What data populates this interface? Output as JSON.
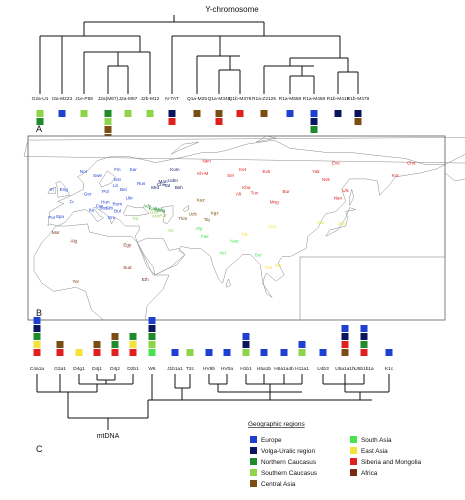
{
  "y_title": "Y-chromosome",
  "mt_title": "mtDNA",
  "panels": {
    "a": "A",
    "b": "B",
    "c": "C"
  },
  "legend_title": "Geographic regions",
  "colors": {
    "europe": "#1f3fd0",
    "volga": "#0a1560",
    "ncau": "#1e8a2a",
    "scau": "#8ed44a",
    "casia": "#7a4e12",
    "sasia": "#49e34f",
    "easia": "#f2e23a",
    "sib": "#e0201e",
    "africa": "#7a2a10"
  },
  "legend_items": [
    {
      "key": "europe",
      "label": "Europe"
    },
    {
      "key": "volga",
      "label": "Volga-Uralic region"
    },
    {
      "key": "ncau",
      "label": "Northern Caucasus"
    },
    {
      "key": "scau",
      "label": "Southern Caucasus"
    },
    {
      "key": "casia",
      "label": "Central Asia"
    },
    {
      "key": "sasia",
      "label": "South Asia"
    },
    {
      "key": "easia",
      "label": "East Asia"
    },
    {
      "key": "sib",
      "label": "Siberia and Mongolia"
    },
    {
      "key": "africa",
      "label": "Africa"
    }
  ],
  "y_leaves": [
    {
      "label": "G2a-U1",
      "colors": [
        "scau",
        "ncau"
      ]
    },
    {
      "label": "I2a-M223",
      "colors": [
        "europe"
      ]
    },
    {
      "label": "J1e-P58",
      "colors": [
        "scau"
      ]
    },
    {
      "label": "J2a(M67)",
      "colors": [
        "ncau",
        "scau",
        "casia",
        "casia"
      ]
    },
    {
      "label": "J2a-M67",
      "colors": [
        "scau"
      ]
    },
    {
      "label": "J2b-M12",
      "colors": [
        "scau"
      ]
    },
    {
      "label": "N-TAT",
      "colors": [
        "volga",
        "sib"
      ]
    },
    {
      "label": "Q1a-M25",
      "colors": [
        "casia"
      ]
    },
    {
      "label": "Q1a-M346",
      "colors": [
        "casia",
        "sib"
      ]
    },
    {
      "label": "Q1b-M378",
      "colors": [
        "sib"
      ]
    },
    {
      "label": "R1a-Z2125",
      "colors": [
        "casia"
      ]
    },
    {
      "label": "R1a-M558",
      "colors": [
        "europe"
      ]
    },
    {
      "label": "R1a-M458",
      "colors": [
        "europe",
        "volga",
        "ncau"
      ]
    },
    {
      "label": "R1b-M412",
      "colors": [
        "volga"
      ]
    },
    {
      "label": "R1b-M478",
      "colors": [
        "volga",
        "casia"
      ]
    }
  ],
  "mt_leaves": [
    {
      "label": "C4a1a",
      "colors": [
        "sib",
        "easia",
        "ncau",
        "volga",
        "europe"
      ]
    },
    {
      "label": "G2a1",
      "colors": [
        "sib",
        "casia"
      ]
    },
    {
      "label": "D4g1",
      "colors": [
        "easia"
      ]
    },
    {
      "label": "D4j1",
      "colors": [
        "sib",
        "casia"
      ]
    },
    {
      "label": "D4j2",
      "colors": [
        "sib",
        "ncau",
        "casia"
      ]
    },
    {
      "label": "D2b1",
      "colors": [
        "sib",
        "easia",
        "ncau"
      ]
    },
    {
      "label": "W6",
      "colors": [
        "sasia",
        "scau",
        "ncau",
        "volga",
        "europe"
      ]
    },
    {
      "label": "J1b1a1",
      "colors": [
        "europe"
      ]
    },
    {
      "label": "T2c",
      "colors": [
        "scau"
      ]
    },
    {
      "label": "HV9b",
      "colors": [
        "europe"
      ]
    },
    {
      "label": "HV0a",
      "colors": [
        "europe"
      ]
    },
    {
      "label": "H1b1",
      "colors": [
        "scau",
        "volga",
        "europe"
      ]
    },
    {
      "label": "H5a1b",
      "colors": [
        "europe"
      ]
    },
    {
      "label": "H6a1a4b",
      "colors": [
        "europe"
      ]
    },
    {
      "label": "H11a1",
      "colors": [
        "scau",
        "europe"
      ]
    },
    {
      "label": "U4b3",
      "colors": [
        "europe"
      ]
    },
    {
      "label": "U5a1a1h",
      "colors": [
        "casia",
        "sib",
        "volga",
        "europe"
      ]
    },
    {
      "label": "U5b1b1a",
      "colors": [
        "sib",
        "ncau",
        "volga",
        "europe"
      ]
    },
    {
      "label": "K1c",
      "colors": [
        "europe"
      ]
    }
  ],
  "map_labels": [
    {
      "text": "Nor",
      "region": "europe",
      "lon": 8,
      "lat": 62
    },
    {
      "text": "Swe",
      "region": "europe",
      "lon": 15,
      "lat": 60
    },
    {
      "text": "Fin",
      "region": "europe",
      "lon": 25,
      "lat": 63
    },
    {
      "text": "Kar",
      "region": "europe",
      "lon": 33,
      "lat": 63
    },
    {
      "text": "Eng",
      "region": "europe",
      "lon": -2,
      "lat": 53
    },
    {
      "text": "Irl",
      "region": "europe",
      "lon": -8,
      "lat": 53
    },
    {
      "text": "Fr",
      "region": "europe",
      "lon": 2,
      "lat": 47
    },
    {
      "text": "Ger",
      "region": "europe",
      "lon": 10,
      "lat": 51
    },
    {
      "text": "Pol",
      "region": "europe",
      "lon": 19,
      "lat": 52
    },
    {
      "text": "Est",
      "region": "europe",
      "lon": 25,
      "lat": 58
    },
    {
      "text": "Lit",
      "region": "europe",
      "lon": 24,
      "lat": 55
    },
    {
      "text": "Bel",
      "region": "europe",
      "lon": 28,
      "lat": 53
    },
    {
      "text": "Rus",
      "region": "europe",
      "lon": 37,
      "lat": 56
    },
    {
      "text": "Ukr",
      "region": "europe",
      "lon": 31,
      "lat": 49
    },
    {
      "text": "Hun",
      "region": "europe",
      "lon": 19,
      "lat": 47
    },
    {
      "text": "Cro",
      "region": "europe",
      "lon": 16,
      "lat": 45
    },
    {
      "text": "Bos",
      "region": "europe",
      "lon": 18,
      "lat": 44
    },
    {
      "text": "Srb",
      "region": "europe",
      "lon": 21,
      "lat": 44
    },
    {
      "text": "Rom",
      "region": "europe",
      "lon": 25,
      "lat": 46
    },
    {
      "text": "Bul",
      "region": "europe",
      "lon": 25,
      "lat": 42.5
    },
    {
      "text": "Ita",
      "region": "europe",
      "lon": 12,
      "lat": 43
    },
    {
      "text": "Spa",
      "region": "europe",
      "lon": -4,
      "lat": 40
    },
    {
      "text": "Por",
      "region": "europe",
      "lon": -8,
      "lat": 39.5
    },
    {
      "text": "Gre",
      "region": "europe",
      "lon": 22,
      "lat": 39.5
    },
    {
      "text": "Mari",
      "region": "volga",
      "lon": 48,
      "lat": 57
    },
    {
      "text": "Chv",
      "region": "volga",
      "lon": 47,
      "lat": 55.5
    },
    {
      "text": "Mrd",
      "region": "volga",
      "lon": 44,
      "lat": 54
    },
    {
      "text": "Udm",
      "region": "volga",
      "lon": 53,
      "lat": 57.5
    },
    {
      "text": "Kom",
      "region": "volga",
      "lon": 54,
      "lat": 63
    },
    {
      "text": "Tat",
      "region": "volga",
      "lon": 50,
      "lat": 55
    },
    {
      "text": "Bsh",
      "region": "volga",
      "lon": 56,
      "lat": 54
    },
    {
      "text": "Ady",
      "region": "ncau",
      "lon": 40,
      "lat": 45
    },
    {
      "text": "Kab",
      "region": "ncau",
      "lon": 43,
      "lat": 43.8
    },
    {
      "text": "Che",
      "region": "ncau",
      "lon": 45.7,
      "lat": 43.3
    },
    {
      "text": "Dag",
      "region": "ncau",
      "lon": 47,
      "lat": 42.8
    },
    {
      "text": "Arm",
      "region": "scau",
      "lon": 44.5,
      "lat": 40.2
    },
    {
      "text": "Geo",
      "region": "scau",
      "lon": 43.5,
      "lat": 42
    },
    {
      "text": "Azr",
      "region": "scau",
      "lon": 48,
      "lat": 40.5
    },
    {
      "text": "Tur",
      "region": "scau",
      "lon": 34,
      "lat": 39
    },
    {
      "text": "Irn",
      "region": "scau",
      "lon": 52,
      "lat": 33
    },
    {
      "text": "Kaz",
      "region": "casia",
      "lon": 67,
      "lat": 48
    },
    {
      "text": "Uzb",
      "region": "casia",
      "lon": 63,
      "lat": 41
    },
    {
      "text": "Tkm",
      "region": "casia",
      "lon": 58,
      "lat": 39
    },
    {
      "text": "Kgz",
      "region": "casia",
      "lon": 74,
      "lat": 41.5
    },
    {
      "text": "Taj",
      "region": "casia",
      "lon": 70,
      "lat": 38.5
    },
    {
      "text": "Afg",
      "region": "sasia",
      "lon": 66,
      "lat": 34
    },
    {
      "text": "Pak",
      "region": "sasia",
      "lon": 69,
      "lat": 30
    },
    {
      "text": "Ind",
      "region": "sasia",
      "lon": 78,
      "lat": 22
    },
    {
      "text": "Bur",
      "region": "sasia",
      "lon": 96,
      "lat": 21
    },
    {
      "text": "Nep",
      "region": "sasia",
      "lon": 84,
      "lat": 28
    },
    {
      "text": "Chn",
      "region": "easia",
      "lon": 103,
      "lat": 35
    },
    {
      "text": "Tib",
      "region": "easia",
      "lon": 89,
      "lat": 31
    },
    {
      "text": "Kor",
      "region": "easia",
      "lon": 127.5,
      "lat": 37
    },
    {
      "text": "Jpn",
      "region": "easia",
      "lon": 138,
      "lat": 36.5
    },
    {
      "text": "Vie",
      "region": "easia",
      "lon": 106,
      "lat": 16
    },
    {
      "text": "Tha",
      "region": "easia",
      "lon": 101,
      "lat": 15
    },
    {
      "text": "Mng",
      "region": "sib",
      "lon": 104,
      "lat": 47
    },
    {
      "text": "Bur",
      "region": "sib",
      "lon": 110,
      "lat": 52
    },
    {
      "text": "Tuv",
      "region": "sib",
      "lon": 94,
      "lat": 51.5
    },
    {
      "text": "Alt",
      "region": "sib",
      "lon": 86,
      "lat": 51
    },
    {
      "text": "Kha",
      "region": "sib",
      "lon": 90,
      "lat": 54
    },
    {
      "text": "Evk",
      "region": "sib",
      "lon": 100,
      "lat": 62
    },
    {
      "text": "Yak",
      "region": "sib",
      "lon": 125,
      "lat": 62
    },
    {
      "text": "Eve",
      "region": "sib",
      "lon": 135,
      "lat": 66
    },
    {
      "text": "Chu",
      "region": "sib",
      "lon": 173,
      "lat": 66
    },
    {
      "text": "Kor",
      "region": "sib",
      "lon": 165,
      "lat": 60
    },
    {
      "text": "Nan",
      "region": "sib",
      "lon": 136,
      "lat": 49
    },
    {
      "text": "Ulc",
      "region": "sib",
      "lon": 140,
      "lat": 52.5
    },
    {
      "text": "Nvk",
      "region": "sib",
      "lon": 130,
      "lat": 58
    },
    {
      "text": "Ket",
      "region": "sib",
      "lon": 88,
      "lat": 63
    },
    {
      "text": "Sel",
      "region": "sib",
      "lon": 82,
      "lat": 60
    },
    {
      "text": "Nen",
      "region": "sib",
      "lon": 70,
      "lat": 67
    },
    {
      "text": "Kh-M",
      "region": "sib",
      "lon": 68,
      "lat": 61
    },
    {
      "text": "Mor",
      "region": "africa",
      "lon": -6,
      "lat": 32
    },
    {
      "text": "Alg",
      "region": "africa",
      "lon": 3,
      "lat": 28
    },
    {
      "text": "Egy",
      "region": "africa",
      "lon": 30,
      "lat": 26
    },
    {
      "text": "Sud",
      "region": "africa",
      "lon": 30,
      "lat": 15
    },
    {
      "text": "Eth",
      "region": "africa",
      "lon": 39,
      "lat": 9
    },
    {
      "text": "Yor",
      "region": "africa",
      "lon": 4,
      "lat": 8
    }
  ]
}
